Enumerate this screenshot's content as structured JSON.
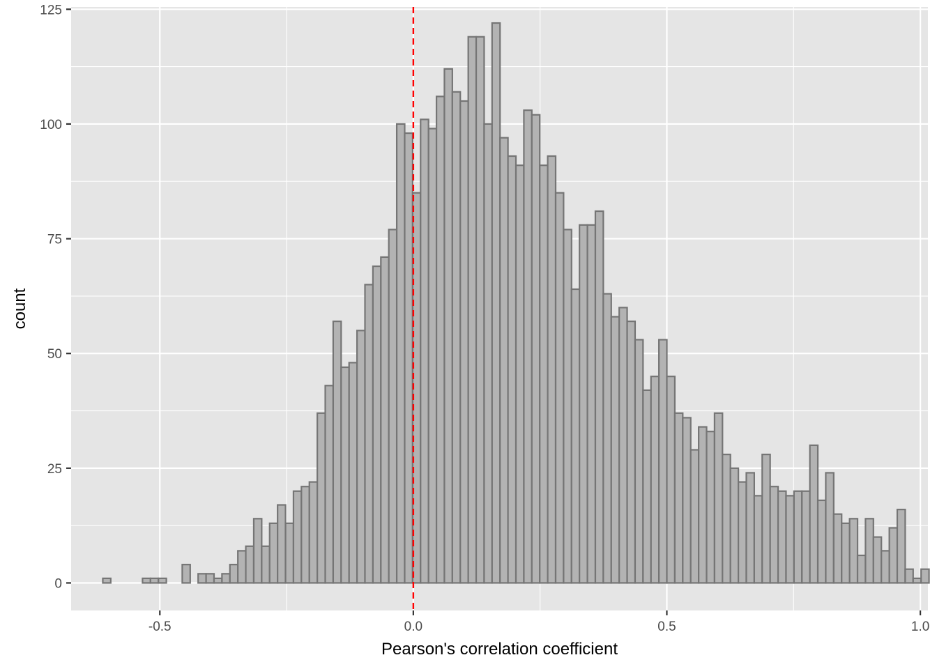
{
  "chart_data": {
    "type": "bar",
    "subtype": "histogram",
    "title": "",
    "xlabel": "Pearson's correlation coefficient",
    "ylabel": "count",
    "xlim": [
      -0.675,
      1.015
    ],
    "ylim": [
      -6,
      125.5
    ],
    "x_ticks": [
      {
        "value": -0.5,
        "label": "-0.5"
      },
      {
        "value": 0.0,
        "label": "0.0"
      },
      {
        "value": 0.5,
        "label": "0.5"
      },
      {
        "value": 1.0,
        "label": "1.0"
      }
    ],
    "y_ticks": [
      {
        "value": 0,
        "label": "0"
      },
      {
        "value": 25,
        "label": "25"
      },
      {
        "value": 50,
        "label": "50"
      },
      {
        "value": 75,
        "label": "75"
      },
      {
        "value": 100,
        "label": "100"
      },
      {
        "value": 125,
        "label": "125"
      }
    ],
    "grid": true,
    "bin_width": 0.01567,
    "first_bin_left": -0.6125,
    "values": [
      1,
      0,
      0,
      0,
      0,
      1,
      1,
      1,
      0,
      0,
      4,
      0,
      2,
      2,
      1,
      2,
      4,
      7,
      8,
      14,
      8,
      13,
      17,
      13,
      20,
      21,
      22,
      37,
      43,
      57,
      47,
      48,
      55,
      65,
      69,
      71,
      77,
      100,
      98,
      85,
      101,
      99,
      106,
      112,
      107,
      105,
      119,
      119,
      100,
      122,
      97,
      93,
      91,
      103,
      102,
      91,
      93,
      85,
      77,
      64,
      78,
      78,
      81,
      63,
      58,
      60,
      57,
      53,
      42,
      45,
      53,
      45,
      37,
      36,
      29,
      34,
      33,
      37,
      28,
      25,
      22,
      24,
      19,
      28,
      21,
      20,
      19,
      20,
      20,
      30,
      18,
      24,
      15,
      13,
      14,
      6,
      14,
      10,
      7,
      12,
      16,
      3,
      1,
      3
    ],
    "bar_fill": "#b3b3b3",
    "bar_stroke": "#757575",
    "panel_background": "#e5e5e5",
    "grid_color": "#ffffff",
    "reference_line": {
      "x": 0.0,
      "color": "#ff0000",
      "style": "dashed"
    }
  }
}
